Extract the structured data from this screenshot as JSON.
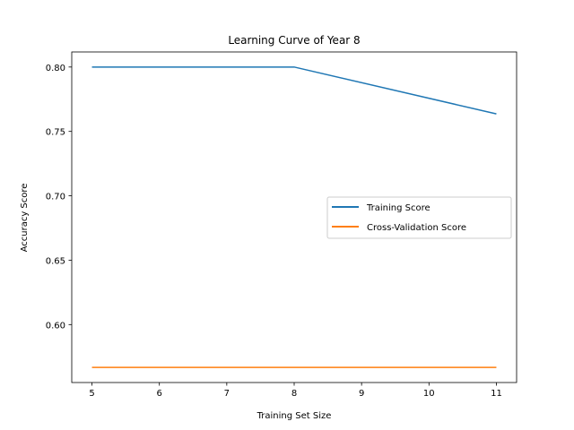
{
  "chart_data": {
    "type": "line",
    "title": "Learning Curve of Year 8",
    "xlabel": "Training Set Size",
    "ylabel": "Accuracy Score",
    "x": [
      5,
      8,
      11
    ],
    "series": [
      {
        "name": "Training Score",
        "color": "#1f77b4",
        "values": [
          0.8,
          0.8,
          0.7636
        ]
      },
      {
        "name": "Cross-Validation Score",
        "color": "#ff7f0e",
        "values": [
          0.5667,
          0.5667,
          0.5667
        ]
      }
    ],
    "xlim": [
      4.7,
      11.3
    ],
    "ylim": [
      0.555,
      0.8117
    ],
    "xticks": [
      5,
      6,
      7,
      8,
      9,
      10,
      11
    ],
    "yticks": [
      0.6,
      0.65,
      0.7,
      0.75,
      0.8
    ],
    "xtick_labels": [
      "5",
      "6",
      "7",
      "8",
      "9",
      "10",
      "11"
    ],
    "ytick_labels": [
      "0.60",
      "0.65",
      "0.70",
      "0.75",
      "0.80"
    ],
    "grid": false,
    "legend_position": "center-right"
  }
}
